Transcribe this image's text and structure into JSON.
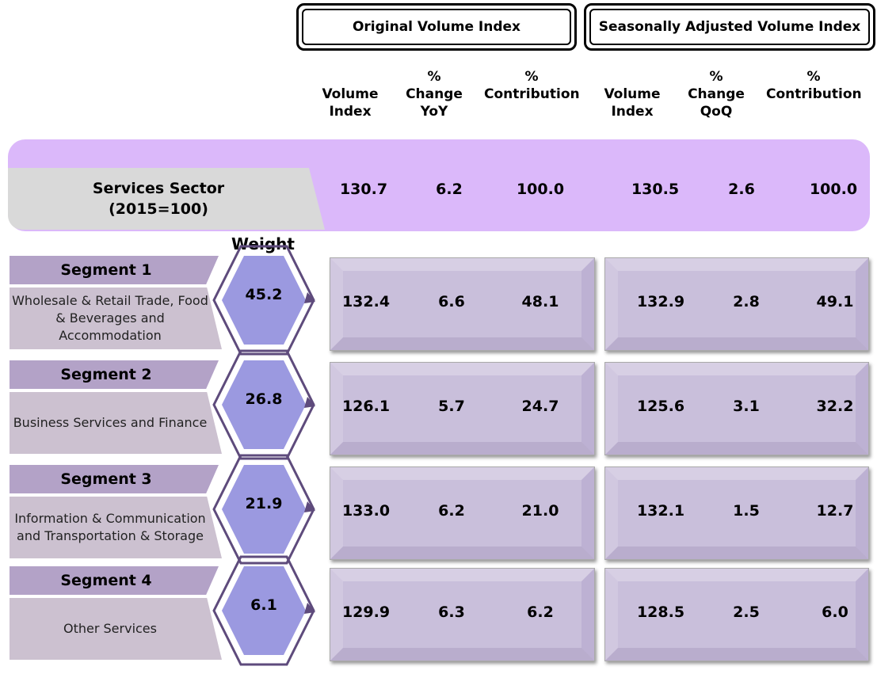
{
  "headers": {
    "original": "Original Volume Index",
    "seasonal": "Seasonally Adjusted Volume Index"
  },
  "columns": [
    "Volume Index",
    "% Change YoY",
    "% Contribution",
    "Volume Index",
    "% Change QoQ",
    "% Contribution"
  ],
  "columns_lines": [
    [
      "Volume",
      "Index"
    ],
    [
      "%",
      "Change",
      "YoY"
    ],
    [
      "%",
      "Contribution"
    ],
    [
      "Volume",
      "Index"
    ],
    [
      "%",
      "Change",
      "QoQ"
    ],
    [
      "%",
      "Contribution"
    ]
  ],
  "sector": {
    "line1": "Services Sector",
    "line2": "(2015=100)",
    "values": [
      "130.7",
      "6.2",
      "100.0",
      "130.5",
      "2.6",
      "100.0"
    ]
  },
  "weight_label": "Weight",
  "segments": [
    {
      "name": "Segment 1",
      "desc": "Wholesale & Retail Trade, Food & Beverages and Accommodation",
      "weight": "45.2",
      "values": [
        "132.4",
        "6.6",
        "48.1",
        "132.9",
        "2.8",
        "49.1"
      ]
    },
    {
      "name": "Segment 2",
      "desc": "Business Services and Finance",
      "weight": "26.8",
      "values": [
        "126.1",
        "5.7",
        "24.7",
        "125.6",
        "3.1",
        "32.2"
      ]
    },
    {
      "name": "Segment 3",
      "desc": "Information & Communication and Transportation & Storage",
      "weight": "21.9",
      "values": [
        "133.0",
        "6.2",
        "21.0",
        "132.1",
        "1.5",
        "12.7"
      ]
    },
    {
      "name": "Segment 4",
      "desc": "Other Services",
      "weight": "6.1",
      "values": [
        "129.9",
        "6.3",
        "6.2",
        "128.5",
        "2.5",
        "6.0"
      ]
    }
  ],
  "colors": {
    "band": "#dbb8fa",
    "segment_header": "#b3a2c7",
    "hexagon": "#9b99e0",
    "value_box": "#c9bfdb"
  }
}
